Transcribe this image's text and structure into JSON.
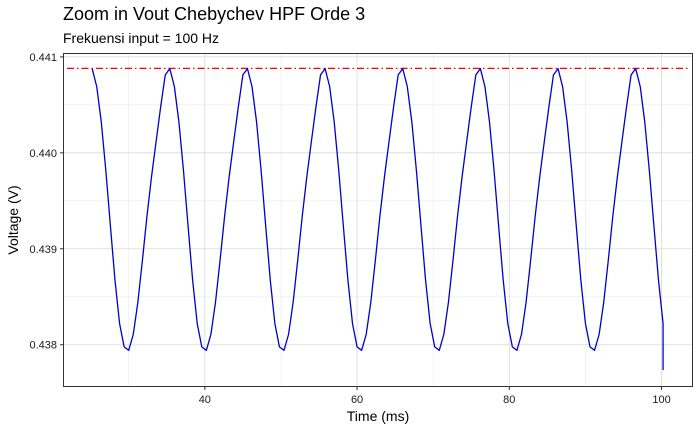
{
  "chart_data": {
    "type": "line",
    "title": "Zoom in Vout Chebychev HPF Orde 3",
    "subtitle": "Frekuensi input = 100 Hz",
    "xlabel": "Time (ms)",
    "ylabel": "Voltage (V)",
    "xlim": [
      21.5,
      104.0
    ],
    "ylim": [
      0.43757,
      0.44103
    ],
    "x_ticks": [
      40,
      60,
      80,
      100
    ],
    "y_ticks": [
      0.438,
      0.439,
      0.44,
      0.441
    ],
    "x_tick_labels": [
      "40",
      "60",
      "80",
      "100"
    ],
    "y_tick_labels": [
      "0.438",
      "0.439",
      "0.440",
      "0.441"
    ],
    "grid": true,
    "legend": "none",
    "series": [
      {
        "color": "#0000cc",
        "style": "solid",
        "x": [
          25.2,
          25.8,
          26.4,
          27.0,
          27.6,
          28.2,
          28.8,
          29.4,
          30.0,
          30.6,
          31.2,
          31.8,
          32.4,
          33.0,
          33.6,
          34.2,
          34.8,
          35.4,
          36.0,
          36.6,
          37.2,
          37.8,
          38.4,
          39.0,
          39.6,
          40.2,
          40.8,
          41.4,
          42.0,
          42.6,
          43.2,
          43.8,
          44.4,
          45.0,
          45.6,
          46.2,
          46.8,
          47.4,
          48.0,
          48.6,
          49.2,
          49.8,
          50.4,
          51.0,
          51.6,
          52.2,
          52.8,
          53.4,
          54.0,
          54.6,
          55.2,
          55.8,
          56.4,
          57.0,
          57.6,
          58.2,
          58.8,
          59.4,
          60.0,
          60.6,
          61.2,
          61.8,
          62.4,
          63.0,
          63.6,
          64.2,
          64.8,
          65.4,
          66.0,
          66.6,
          67.2,
          67.8,
          68.4,
          69.0,
          69.6,
          70.2,
          70.8,
          71.4,
          72.0,
          72.6,
          73.2,
          73.8,
          74.4,
          75.0,
          75.6,
          76.2,
          76.8,
          77.4,
          78.0,
          78.6,
          79.2,
          79.8,
          80.4,
          81.0,
          81.6,
          82.2,
          82.8,
          83.4,
          84.0,
          84.6,
          85.2,
          85.8,
          86.4,
          87.0,
          87.6,
          88.2,
          88.8,
          89.4,
          90.0,
          90.6,
          91.2,
          91.8,
          92.4,
          93.0,
          93.6,
          94.2,
          94.8,
          95.4,
          96.0,
          96.6,
          97.2,
          97.8,
          98.4,
          99.0,
          99.6,
          100.2,
          100.2
        ],
        "values": [
          0.440878,
          0.44069,
          0.44032,
          0.439811,
          0.439235,
          0.438671,
          0.438222,
          0.437978,
          0.437942,
          0.438108,
          0.438441,
          0.438878,
          0.439341,
          0.439752,
          0.440119,
          0.440479,
          0.440812,
          0.440878,
          0.44069,
          0.44032,
          0.439811,
          0.439235,
          0.438671,
          0.438222,
          0.437978,
          0.437942,
          0.438108,
          0.438441,
          0.438878,
          0.439341,
          0.439752,
          0.440119,
          0.440479,
          0.440812,
          0.440878,
          0.44069,
          0.44032,
          0.439811,
          0.439235,
          0.438671,
          0.438222,
          0.437978,
          0.437942,
          0.438108,
          0.438441,
          0.438878,
          0.439341,
          0.439752,
          0.440119,
          0.440479,
          0.440812,
          0.440878,
          0.44069,
          0.44032,
          0.439811,
          0.439235,
          0.438671,
          0.438222,
          0.437978,
          0.437942,
          0.438108,
          0.438441,
          0.438878,
          0.439341,
          0.439752,
          0.440119,
          0.440479,
          0.440812,
          0.440878,
          0.44069,
          0.44032,
          0.439811,
          0.439235,
          0.438671,
          0.438222,
          0.437978,
          0.437942,
          0.438108,
          0.438441,
          0.438878,
          0.439341,
          0.439752,
          0.440119,
          0.440479,
          0.440812,
          0.440878,
          0.44069,
          0.44032,
          0.439811,
          0.439235,
          0.438671,
          0.438222,
          0.437978,
          0.437942,
          0.438108,
          0.438441,
          0.438878,
          0.439341,
          0.439752,
          0.440119,
          0.440479,
          0.440812,
          0.440878,
          0.44069,
          0.44032,
          0.439811,
          0.439235,
          0.438671,
          0.438222,
          0.437978,
          0.437942,
          0.438108,
          0.438441,
          0.438878,
          0.439341,
          0.439752,
          0.440119,
          0.440479,
          0.440812,
          0.440878,
          0.44069,
          0.44032,
          0.439811,
          0.439235,
          0.438671,
          0.438222,
          0.437736
        ]
      }
    ],
    "reference_lines": [
      {
        "axis": "y",
        "value": 0.44088,
        "color": "#ff0000",
        "style": "dashdot"
      }
    ]
  }
}
